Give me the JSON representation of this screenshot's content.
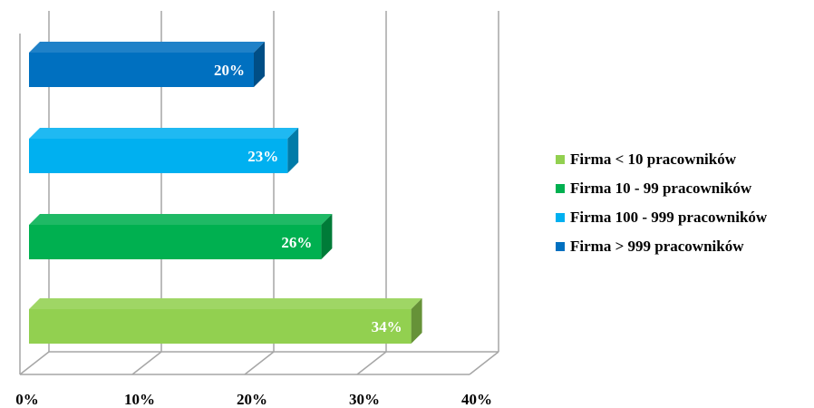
{
  "chart_data": {
    "type": "bar",
    "orientation": "horizontal",
    "style": "3d",
    "categories": [
      "Firma < 10 pracowników",
      "Firma 10 - 99 pracowników",
      "Firma 100 - 999 pracowników",
      "Firma > 999 pracowników"
    ],
    "values": [
      34,
      26,
      23,
      20
    ],
    "data_labels": [
      "34%",
      "26%",
      "23%",
      "20%"
    ],
    "colors": [
      "#92d050",
      "#00b050",
      "#00b0f0",
      "#0070c0"
    ],
    "xlim": [
      0,
      40
    ],
    "x_ticks": [
      "0%",
      "10%",
      "20%",
      "30%",
      "40%"
    ],
    "grid": true,
    "legend_position": "right",
    "title": "",
    "xlabel": "",
    "ylabel": ""
  },
  "legend": {
    "items": [
      {
        "label": "Firma < 10 pracowników",
        "color": "#92d050"
      },
      {
        "label": "Firma 10 - 99 pracowników",
        "color": "#00b050"
      },
      {
        "label": "Firma 100 - 999 pracowników",
        "color": "#00b0f0"
      },
      {
        "label": "Firma > 999 pracowników",
        "color": "#0070c0"
      }
    ]
  }
}
